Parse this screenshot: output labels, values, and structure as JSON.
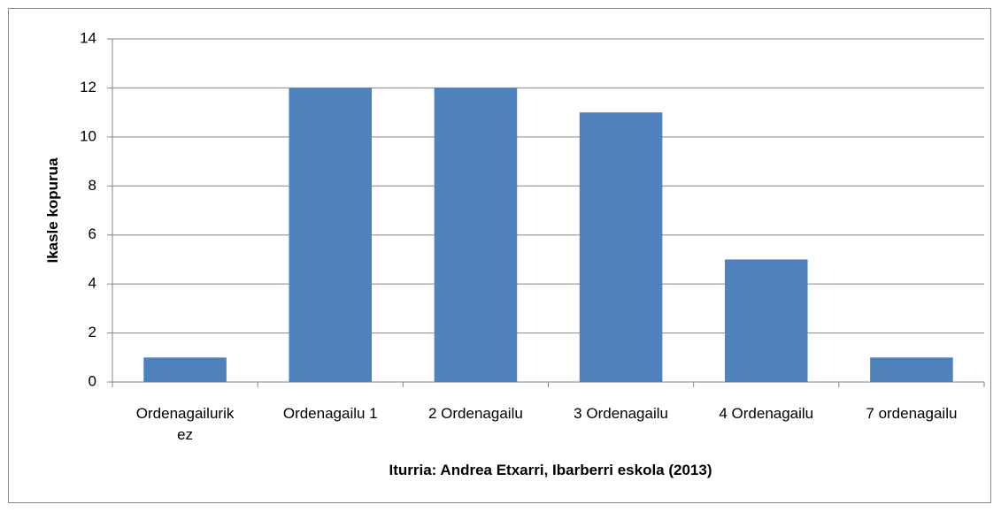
{
  "chart_data": {
    "type": "bar",
    "categories": [
      "Ordenagailurik ez",
      "Ordenagailu 1",
      "2 Ordenagailu",
      "3 Ordenagailu",
      "4 Ordenagailu",
      "7 ordenagailu"
    ],
    "values": [
      1,
      12,
      12,
      11,
      5,
      1
    ],
    "color": "#4f81bd",
    "ylabel": "Ikasle kopurua",
    "xlabel": "Iturria: Andrea Etxarri, Ibarberri eskola (2013)",
    "ylim": [
      0,
      14
    ],
    "yticks": [
      0,
      2,
      4,
      6,
      8,
      10,
      12,
      14
    ],
    "grid": true
  }
}
